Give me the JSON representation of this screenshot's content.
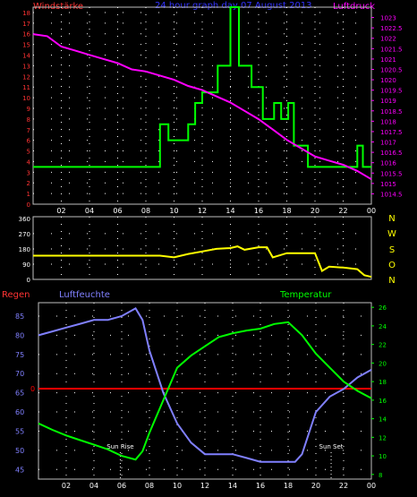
{
  "header": {
    "left_label": "Windstärke",
    "center_title": "24 hour graph day  07 August  2013",
    "right_label": "Luftdruck"
  },
  "x_ticks": [
    "02",
    "04",
    "06",
    "08",
    "10",
    "12",
    "14",
    "16",
    "18",
    "20",
    "22",
    "00"
  ],
  "colors": {
    "wind": "#00ff00",
    "pressure": "#ff00ff",
    "direction": "#ffff00",
    "humidity": "#8080ff",
    "temperature": "#00ff00",
    "rain": "#ff0000",
    "grid": "#ffffff",
    "axis_left": "#ff3333",
    "axis_right_top": "#ff00ff",
    "axis_right_bottom": "#00ff00"
  },
  "chart_data": [
    {
      "type": "line",
      "name": "wind_pressure",
      "xlim": [
        0,
        24
      ],
      "ylim_left": [
        0,
        18.5
      ],
      "ylim_right": [
        1014,
        1023.5
      ],
      "left_ticks": [
        0,
        1,
        2,
        3,
        4,
        5,
        6,
        7,
        8,
        9,
        10,
        11,
        12,
        13,
        14,
        15,
        16,
        17,
        18
      ],
      "right_ticks": [
        "1023",
        "1022.5",
        "1022",
        "1021.5",
        "1021",
        "1020.5",
        "1020",
        "1019.5",
        "1019",
        "1018.5",
        "1018",
        "1017.5",
        "1017",
        "1016.5",
        "1016",
        "1015.5",
        "1015",
        "1014.5"
      ],
      "series": [
        {
          "axis": "left",
          "step": true,
          "x": [
            0,
            9.0,
            9.0,
            9.6,
            9.6,
            11.0,
            11.0,
            11.5,
            11.5,
            12.0,
            12.0,
            13.1,
            13.1,
            14.0,
            14.0,
            14.6,
            14.6,
            15.5,
            15.5,
            16.3,
            16.3,
            17.1,
            17.1,
            17.6,
            17.6,
            18.1,
            18.1,
            18.5,
            18.5,
            19.5,
            19.5,
            21.8,
            21.8,
            23.0,
            23.0,
            23.4,
            23.4,
            24
          ],
          "y": [
            3.5,
            3.5,
            7.5,
            7.5,
            6.0,
            6.0,
            7.5,
            7.5,
            9.5,
            9.5,
            10.5,
            10.5,
            13.0,
            13.0,
            18.5,
            18.5,
            13.0,
            13.0,
            11.0,
            11.0,
            8.0,
            8.0,
            9.5,
            9.5,
            8.0,
            8.0,
            9.5,
            9.5,
            5.5,
            5.5,
            3.5,
            3.5,
            3.5,
            3.5,
            5.5,
            5.5,
            3.5,
            3.5
          ]
        },
        {
          "axis": "right",
          "step": false,
          "x": [
            0.0,
            1.0,
            2.0,
            3.0,
            4.0,
            5.0,
            6.0,
            7.0,
            8.0,
            9.0,
            10.0,
            11.0,
            12.0,
            13.0,
            14.0,
            15.0,
            16.0,
            17.0,
            18.0,
            19.0,
            20.0,
            21.0,
            22.0,
            23.0,
            24.0
          ],
          "y": [
            1022.2,
            1022.1,
            1021.6,
            1021.4,
            1021.2,
            1021.0,
            1020.8,
            1020.5,
            1020.4,
            1020.2,
            1020.0,
            1019.7,
            1019.5,
            1019.2,
            1018.9,
            1018.5,
            1018.1,
            1017.6,
            1017.1,
            1016.7,
            1016.3,
            1016.1,
            1015.9,
            1015.6,
            1015.2
          ]
        }
      ]
    },
    {
      "type": "line",
      "name": "wind_direction",
      "xlim": [
        0,
        24
      ],
      "ylim": [
        0,
        370
      ],
      "left_ticks": [
        0,
        90,
        180,
        270,
        360
      ],
      "right_labels": [
        "N",
        "W",
        "S",
        "O",
        "N"
      ],
      "series": [
        {
          "x": [
            0.0,
            9.0,
            10.0,
            11.0,
            12.0,
            13.0,
            14.0,
            14.5,
            15.0,
            16.0,
            16.6,
            17.0,
            18.0,
            19.0,
            20.0,
            20.5,
            21.0,
            22.0,
            23.0,
            23.5,
            24.0
          ],
          "y": [
            140,
            140,
            130,
            150,
            165,
            180,
            185,
            195,
            175,
            190,
            190,
            130,
            155,
            155,
            155,
            50,
            75,
            70,
            60,
            25,
            15
          ]
        }
      ]
    },
    {
      "type": "line",
      "name": "humidity_temperature",
      "xlim": [
        0,
        24
      ],
      "ylim_left": [
        42.5,
        88.5
      ],
      "ylim_right": [
        7.5,
        26.5
      ],
      "left_ticks": [
        45,
        50,
        55,
        60,
        65,
        70,
        75,
        80,
        85
      ],
      "right_ticks": [
        8,
        10,
        12,
        14,
        16,
        18,
        20,
        22,
        24,
        26
      ],
      "rain_value_label": "0",
      "axis_titles": {
        "rain": "Regen",
        "humidity": "Luftfeuchte",
        "temperature": "Temperatur"
      },
      "annotations": [
        {
          "label": "Sun Rise",
          "x": 5.9
        },
        {
          "label": "Sun Set",
          "x": 21.1
        }
      ],
      "series": [
        {
          "axis": "left",
          "x": [
            0.0,
            1.0,
            2.0,
            3.0,
            4.0,
            5.0,
            6.0,
            7.0,
            7.5,
            8.0,
            9.0,
            10.0,
            11.0,
            12.0,
            13.0,
            14.0,
            15.0,
            16.0,
            17.0,
            18.0,
            18.5,
            19.0,
            20.0,
            21.0,
            22.0,
            23.0,
            24.0
          ],
          "y": [
            80,
            81,
            82,
            83,
            84,
            84,
            85,
            87,
            84,
            76,
            65,
            57,
            52,
            49,
            49,
            49,
            48,
            47,
            47,
            47,
            47,
            49,
            60,
            64,
            66,
            69,
            71
          ]
        },
        {
          "axis": "right",
          "x": [
            0.0,
            1.0,
            2.0,
            3.0,
            4.0,
            5.0,
            6.0,
            7.0,
            7.5,
            8.0,
            9.0,
            10.0,
            11.0,
            12.0,
            13.0,
            14.0,
            15.0,
            16.0,
            17.0,
            18.0,
            19.0,
            20.0,
            21.0,
            22.0,
            23.0,
            24.0
          ],
          "y": [
            13.5,
            12.8,
            12.2,
            11.7,
            11.2,
            10.7,
            10.0,
            9.6,
            10.5,
            12.5,
            16.0,
            19.5,
            20.8,
            21.8,
            22.8,
            23.2,
            23.5,
            23.7,
            24.2,
            24.4,
            23.0,
            21.0,
            19.5,
            18.0,
            17.0,
            16.2
          ]
        },
        {
          "axis": "rain",
          "x": [
            0,
            24
          ],
          "y": [
            0,
            0
          ]
        }
      ]
    }
  ]
}
